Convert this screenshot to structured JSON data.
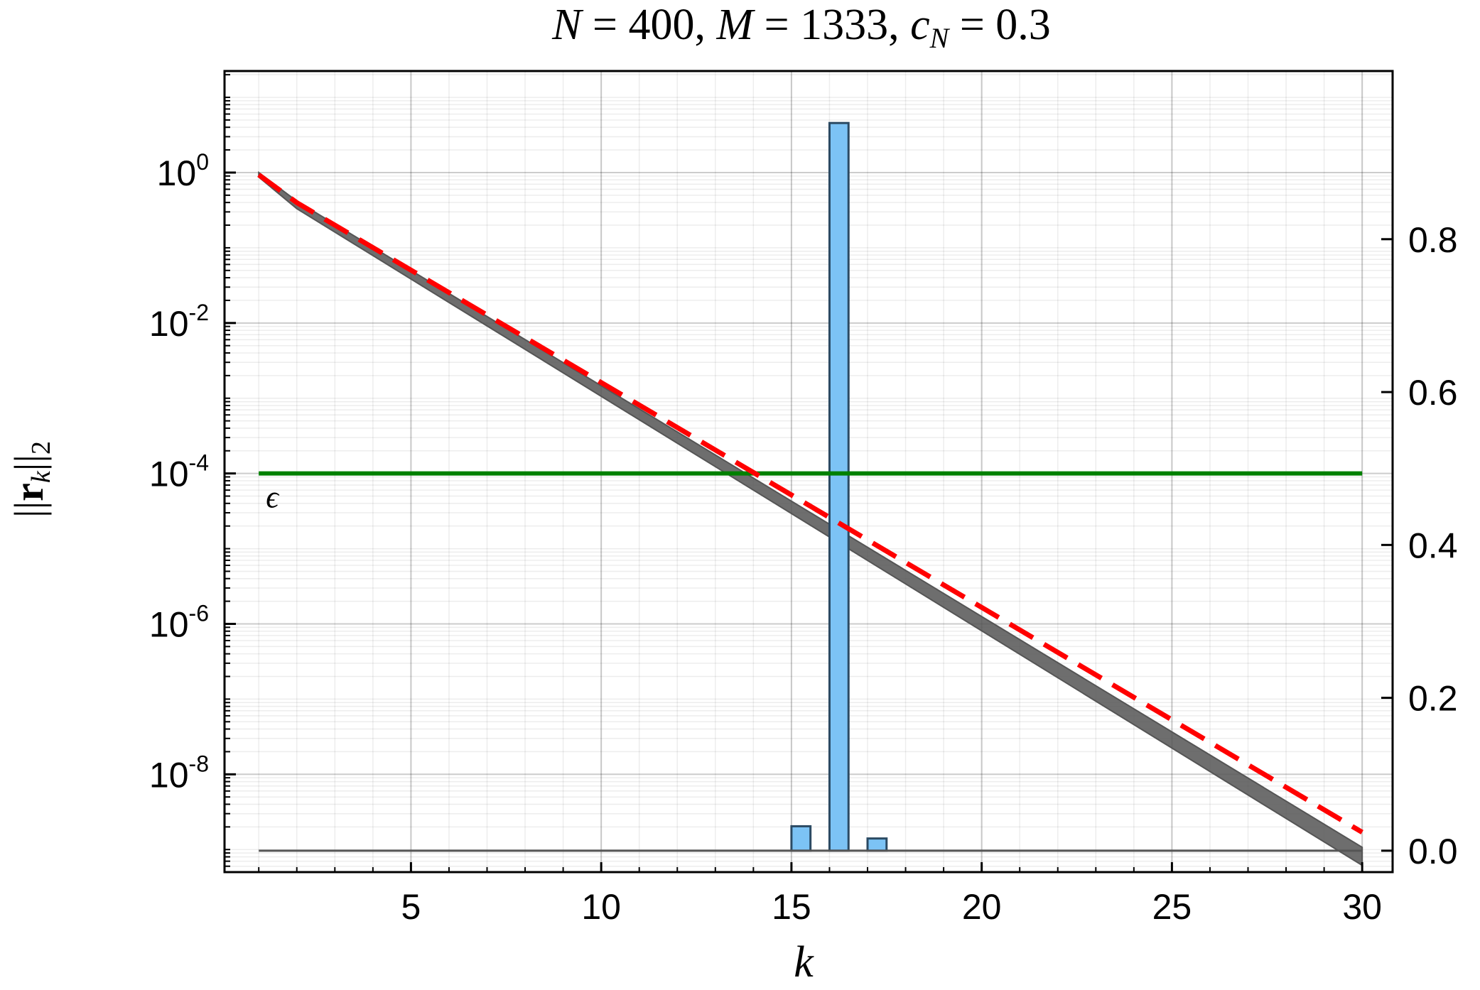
{
  "chart_data": {
    "type": "line",
    "title": "N = 400, M = 1333, c_N = 0.3",
    "title_parts": [
      "N",
      " = 400, ",
      "M",
      " = 1333, ",
      "c",
      "N",
      " = 0.3"
    ],
    "xlabel": "k",
    "ylabel": "||r_k||_2",
    "ylabel_parts": [
      "||",
      "r",
      "k",
      "||",
      "2"
    ],
    "x_ticks": [
      5,
      10,
      15,
      20,
      25,
      30
    ],
    "x_tick_labels": [
      "5",
      "10",
      "15",
      "20",
      "25",
      "30"
    ],
    "xlim": [
      0.1,
      30.8
    ],
    "y_scale": "log",
    "y_exponents": [
      0,
      -2,
      -4,
      -6,
      -8
    ],
    "y_tick_base": "10",
    "y_tick_exp_labels": [
      "0",
      "-2",
      "-4",
      "-6",
      "-8"
    ],
    "ylim_log10": [
      -9.3,
      1.35
    ],
    "y2_ticks": [
      0.0,
      0.2,
      0.4,
      0.6,
      0.8
    ],
    "y2_tick_labels": [
      "0.0",
      "0.2",
      "0.4",
      "0.6",
      "0.8"
    ],
    "y2lim": [
      -0.028,
      1.02
    ],
    "grid": true,
    "series": [
      {
        "kind": "band",
        "color": "#555555",
        "x": [
          2,
          30
        ],
        "log10_center": [
          -0.43,
          -9.09
        ],
        "log10_halfwidth": [
          0.05,
          0.12
        ],
        "first_point": [
          1,
          -0.03
        ]
      },
      {
        "kind": "line",
        "style": "dashed",
        "color": "#ff0000",
        "x": [
          1,
          2,
          30
        ],
        "log10_y": [
          -0.03,
          -0.4,
          -8.77
        ]
      },
      {
        "kind": "hline",
        "color": "#008000",
        "log10_y": -4,
        "x_range": [
          1,
          30
        ],
        "label": "ϵ"
      },
      {
        "kind": "histogram",
        "axis": "right",
        "color": "#7cc3f5",
        "edge_color": "#2b4a63",
        "bins": [
          {
            "x0": 15,
            "x1": 15.5,
            "value": 0.032
          },
          {
            "x0": 16,
            "x1": 16.5,
            "value": 0.952
          },
          {
            "x0": 17,
            "x1": 17.5,
            "value": 0.016
          }
        ],
        "baseline_range": [
          1,
          30
        ]
      }
    ]
  }
}
